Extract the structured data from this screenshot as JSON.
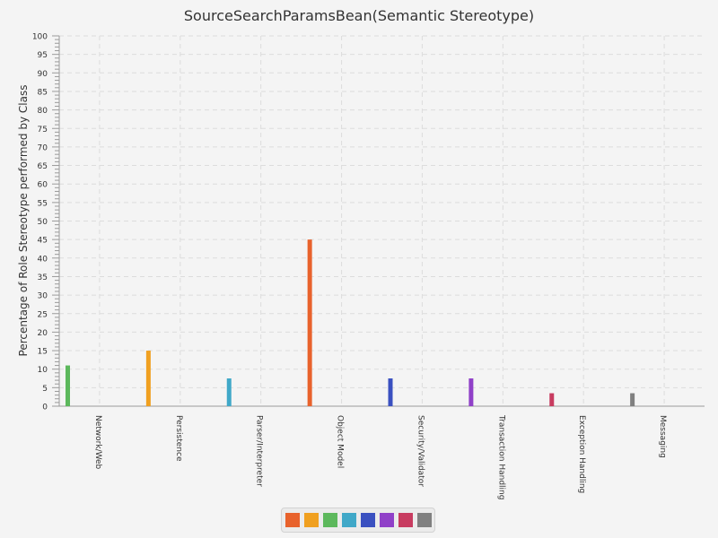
{
  "chart_data": {
    "type": "bar",
    "title": "SourceSearchParamsBean(Semantic Stereotype)",
    "xlabel": "",
    "ylabel": "Percentage of Role Stereotype performed by Class",
    "ylim": [
      0,
      100
    ],
    "y_major_ticks": [
      0,
      5,
      10,
      15,
      20,
      25,
      30,
      35,
      40,
      45,
      50,
      55,
      60,
      65,
      70,
      75,
      80,
      85,
      90,
      95,
      100
    ],
    "grid": true,
    "legend_position": "bottom",
    "categories": [
      "Network/Web",
      "Persistence",
      "Parser/Interpreter",
      "Object Model",
      "Security/Validator",
      "Transaction Handling",
      "Exception Handling",
      "Messaging"
    ],
    "values": [
      11,
      15,
      7.5,
      45,
      7.5,
      7.5,
      3.5,
      3.5
    ],
    "bar_colors": [
      "#5cb85c",
      "#f0a020",
      "#40a8c8",
      "#e8622c",
      "#3a50c0",
      "#9040c8",
      "#c83c60",
      "#808080"
    ],
    "legend_colors": [
      "#e8622c",
      "#f0a020",
      "#5cb85c",
      "#40a8c8",
      "#3a50c0",
      "#9040c8",
      "#c83c60",
      "#808080"
    ]
  }
}
